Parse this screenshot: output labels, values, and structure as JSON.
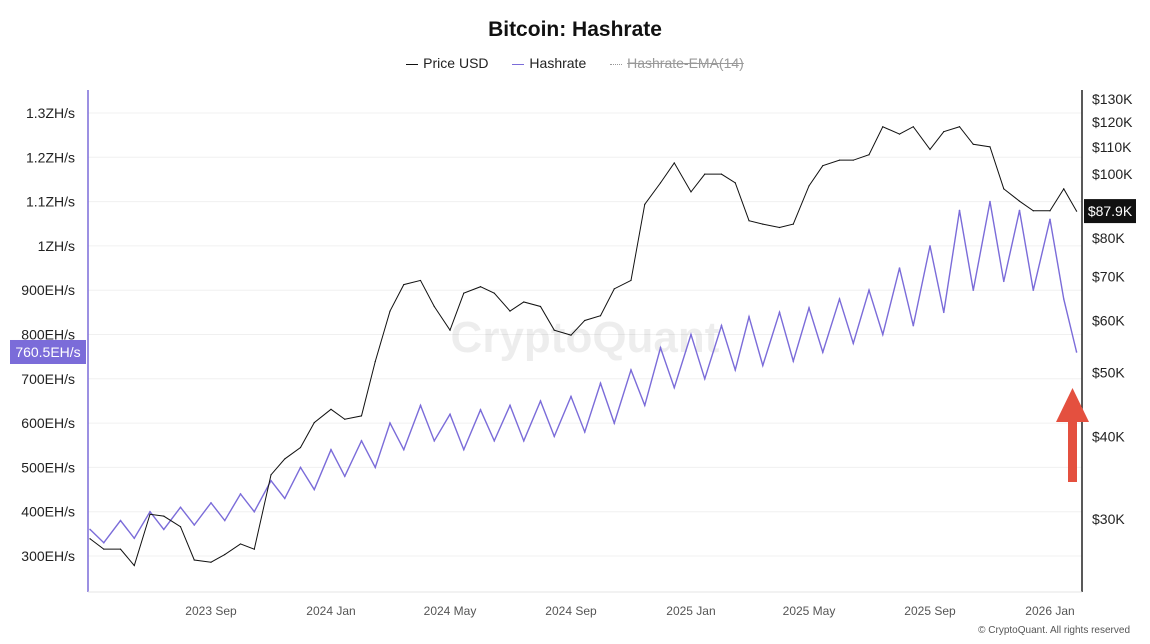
{
  "chart_data": {
    "type": "line",
    "title": "Bitcoin: Hashrate",
    "legend": {
      "placement": "top-center",
      "entries": [
        "Price USD",
        "Hashrate",
        "Hashrate-EMA(14)"
      ],
      "hidden": [
        "Hashrate-EMA(14)"
      ]
    },
    "colors": {
      "price": "#111111",
      "hashrate": "#7B6CD9",
      "ema": "#999999",
      "arrow": "#E4503F"
    },
    "left_axis": {
      "scale": "linear",
      "unit": "EH/s",
      "ticks": [
        "300EH/s",
        "400EH/s",
        "500EH/s",
        "600EH/s",
        "700EH/s",
        "800EH/s",
        "900EH/s",
        "1ZH/s",
        "1.1ZH/s",
        "1.2ZH/s",
        "1.3ZH/s"
      ],
      "tick_values": [
        300,
        400,
        500,
        600,
        700,
        800,
        900,
        1000,
        1100,
        1200,
        1300
      ]
    },
    "right_axis": {
      "scale": "log",
      "unit": "USD",
      "ticks": [
        "$30K",
        "$40K",
        "$50K",
        "$60K",
        "$70K",
        "$80K",
        "$100K",
        "$110K",
        "$120K",
        "$130K"
      ],
      "tick_values": [
        30,
        40,
        50,
        60,
        70,
        80,
        100,
        110,
        120,
        130
      ]
    },
    "x_ticks": [
      "2023 Sep",
      "2024 Jan",
      "2024 May",
      "2024 Sep",
      "2025 Jan",
      "2025 May",
      "2025 Sep",
      "2026 Jan"
    ],
    "x_tick_dates": [
      "2023-09-01",
      "2024-01-01",
      "2024-05-01",
      "2024-09-01",
      "2025-01-01",
      "2025-05-01",
      "2025-09-01",
      "2026-01-01"
    ],
    "grid": true,
    "x": [
      "2023-05-01",
      "2023-05-15",
      "2023-06-01",
      "2023-06-15",
      "2023-07-01",
      "2023-07-15",
      "2023-08-01",
      "2023-08-15",
      "2023-09-01",
      "2023-09-15",
      "2023-10-01",
      "2023-10-15",
      "2023-11-01",
      "2023-11-15",
      "2023-12-01",
      "2023-12-15",
      "2024-01-01",
      "2024-01-15",
      "2024-02-01",
      "2024-02-15",
      "2024-03-01",
      "2024-03-15",
      "2024-04-01",
      "2024-04-15",
      "2024-05-01",
      "2024-05-15",
      "2024-06-01",
      "2024-06-15",
      "2024-07-01",
      "2024-07-15",
      "2024-08-01",
      "2024-08-15",
      "2024-09-01",
      "2024-09-15",
      "2024-10-01",
      "2024-10-15",
      "2024-11-01",
      "2024-11-15",
      "2024-12-01",
      "2024-12-15",
      "2025-01-01",
      "2025-01-15",
      "2025-02-01",
      "2025-02-15",
      "2025-03-01",
      "2025-03-15",
      "2025-04-01",
      "2025-04-15",
      "2025-05-01",
      "2025-05-15",
      "2025-06-01",
      "2025-06-15",
      "2025-07-01",
      "2025-07-15",
      "2025-08-01",
      "2025-08-15",
      "2025-09-01",
      "2025-09-15",
      "2025-10-01",
      "2025-10-15",
      "2025-11-01",
      "2025-11-15",
      "2025-12-01",
      "2025-12-15",
      "2026-01-01",
      "2026-01-15",
      "2026-01-28"
    ],
    "series": [
      {
        "name": "Price USD",
        "axis": "right",
        "unit": "K USD",
        "values": [
          28,
          27,
          27,
          25.5,
          30.5,
          30.3,
          29.2,
          26,
          25.8,
          26.5,
          27.5,
          27,
          35,
          37,
          38.5,
          42,
          44,
          42.5,
          43,
          52,
          62,
          68,
          69,
          63,
          58,
          66,
          67.5,
          66,
          62,
          64,
          63,
          58,
          57,
          60,
          61,
          67,
          69,
          90,
          97,
          104,
          94,
          100,
          100,
          97,
          85,
          84,
          83,
          84,
          96,
          103,
          105,
          105,
          107,
          118,
          115,
          118,
          109,
          116,
          118,
          111,
          110,
          95,
          91,
          88,
          88,
          95,
          87.9
        ]
      },
      {
        "name": "Hashrate",
        "axis": "left",
        "unit": "EH/s",
        "values": [
          360,
          330,
          380,
          340,
          400,
          360,
          410,
          370,
          420,
          380,
          440,
          400,
          470,
          430,
          500,
          450,
          540,
          480,
          560,
          500,
          600,
          540,
          640,
          560,
          620,
          540,
          630,
          560,
          640,
          560,
          650,
          570,
          660,
          580,
          690,
          600,
          720,
          640,
          770,
          680,
          800,
          700,
          820,
          720,
          840,
          730,
          850,
          740,
          860,
          760,
          880,
          780,
          900,
          800,
          950,
          820,
          1000,
          850,
          1080,
          900,
          1100,
          920,
          1080,
          900,
          1060,
          880,
          760.5
        ]
      }
    ],
    "current_labels": {
      "hashrate": "760.5EH/s",
      "price": "$87.9K"
    },
    "watermark": "CryptoQuant"
  },
  "footer": "© CryptoQuant. All rights reserved"
}
